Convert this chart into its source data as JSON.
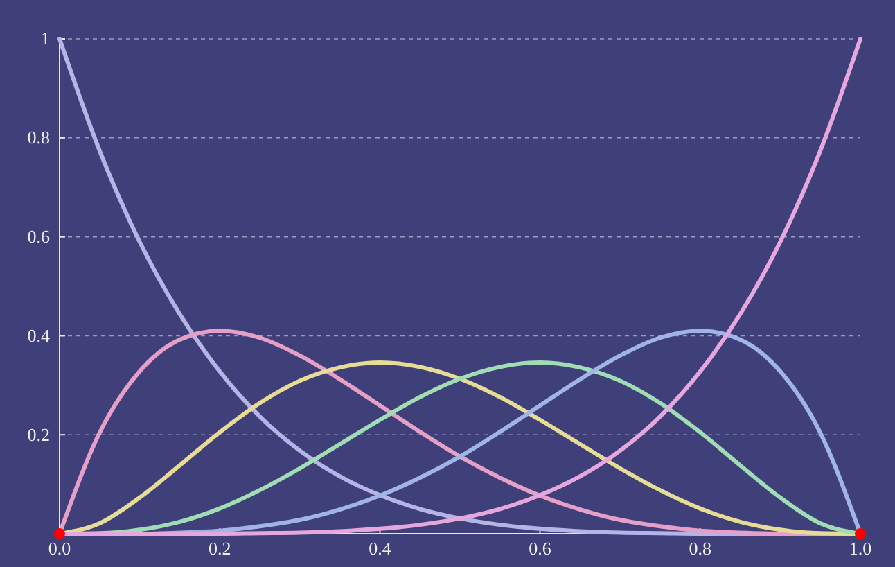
{
  "chart_data": {
    "type": "line",
    "x": [
      0,
      0.05,
      0.1,
      0.15,
      0.2,
      0.25,
      0.3,
      0.35,
      0.4,
      0.45,
      0.5,
      0.55,
      0.6,
      0.65,
      0.7,
      0.75,
      0.8,
      0.85,
      0.9,
      0.95,
      1
    ],
    "xlim": [
      0,
      1
    ],
    "ylim": [
      0,
      1
    ],
    "xticks": [
      {
        "value": 0,
        "label": "0.0"
      },
      {
        "value": 0.2,
        "label": "0.2"
      },
      {
        "value": 0.4,
        "label": "0.4"
      },
      {
        "value": 0.6,
        "label": "0.6"
      },
      {
        "value": 0.8,
        "label": "0.8"
      },
      {
        "value": 1,
        "label": "1.0"
      }
    ],
    "yticks": [
      {
        "value": 0.2,
        "label": "0.2"
      },
      {
        "value": 0.4,
        "label": "0.4"
      },
      {
        "value": 0.6,
        "label": "0.6"
      },
      {
        "value": 0.8,
        "label": "0.8"
      },
      {
        "value": 1,
        "label": "1"
      }
    ],
    "grid": "y",
    "marker": "none",
    "line_style": "solid",
    "series": [
      {
        "color": "#b4b4e6",
        "values": [
          1,
          0.774,
          0.59,
          0.444,
          0.328,
          0.237,
          0.168,
          0.116,
          0.078,
          0.05,
          0.031,
          0.018,
          0.01,
          0.005,
          0.002,
          0.001,
          0,
          0,
          0,
          0,
          0
        ]
      },
      {
        "color": "#e6a0c8",
        "values": [
          0,
          0.204,
          0.328,
          0.392,
          0.41,
          0.396,
          0.36,
          0.312,
          0.259,
          0.206,
          0.156,
          0.113,
          0.077,
          0.049,
          0.028,
          0.015,
          0.006,
          0.002,
          0,
          0,
          0
        ]
      },
      {
        "color": "#e6dc96",
        "values": [
          0,
          0.021,
          0.073,
          0.138,
          0.205,
          0.264,
          0.309,
          0.336,
          0.346,
          0.337,
          0.313,
          0.276,
          0.23,
          0.181,
          0.132,
          0.088,
          0.051,
          0.024,
          0.008,
          0.001,
          0
        ]
      },
      {
        "color": "#a0dcb4",
        "values": [
          0,
          0.001,
          0.008,
          0.024,
          0.051,
          0.088,
          0.132,
          0.181,
          0.23,
          0.276,
          0.313,
          0.337,
          0.346,
          0.336,
          0.309,
          0.264,
          0.205,
          0.138,
          0.073,
          0.021,
          0
        ]
      },
      {
        "color": "#a0b4e6",
        "values": [
          0,
          0,
          0,
          0.002,
          0.006,
          0.015,
          0.028,
          0.049,
          0.077,
          0.113,
          0.156,
          0.206,
          0.259,
          0.312,
          0.36,
          0.396,
          0.41,
          0.392,
          0.328,
          0.204,
          0
        ]
      },
      {
        "color": "#e6a8dc",
        "values": [
          0,
          0,
          0,
          0,
          0,
          0.001,
          0.002,
          0.005,
          0.01,
          0.018,
          0.031,
          0.05,
          0.078,
          0.116,
          0.168,
          0.237,
          0.328,
          0.444,
          0.59,
          0.774,
          1
        ]
      },
      {
        "type": "scatter",
        "color": "#ff0000",
        "marker": "circle",
        "x": [
          0,
          1
        ],
        "values": [
          0,
          0
        ]
      }
    ]
  }
}
